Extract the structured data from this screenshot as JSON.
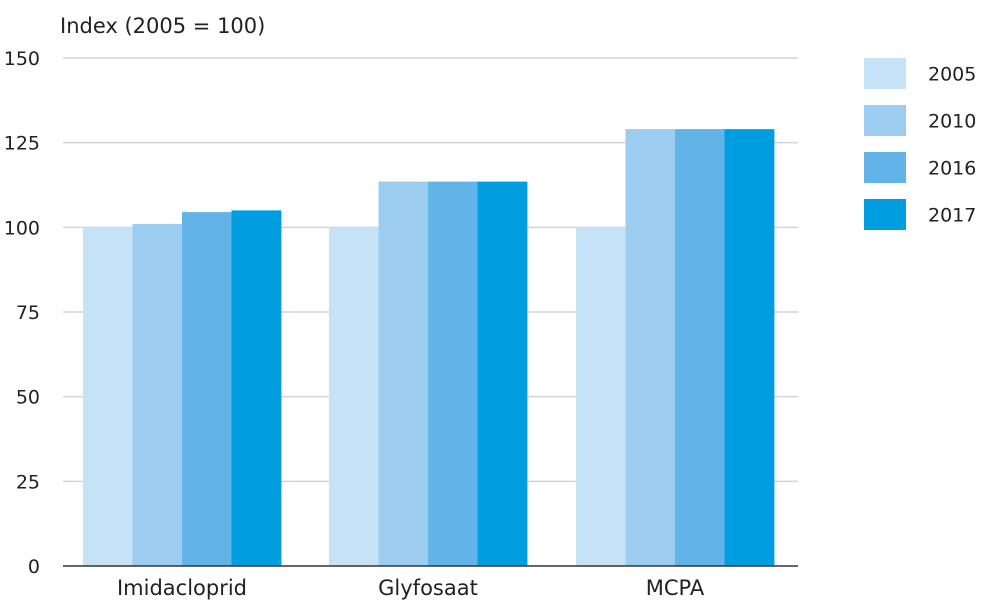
{
  "chart_data": {
    "type": "bar",
    "title": "",
    "ylabel": "Index (2005 = 100)",
    "xlabel": "",
    "ylim": [
      0,
      150
    ],
    "yticks": [
      0,
      25,
      50,
      75,
      100,
      125,
      150
    ],
    "grid": true,
    "legend_position": "right",
    "categories": [
      "Imidacloprid",
      "Glyfosaat",
      "MCPA"
    ],
    "series": [
      {
        "name": "2005",
        "color": "#c6e2f7",
        "values": [
          100,
          100,
          100
        ]
      },
      {
        "name": "2010",
        "color": "#9ccdf0",
        "values": [
          101,
          113.5,
          129
        ]
      },
      {
        "name": "2016",
        "color": "#62b3e8",
        "values": [
          104.5,
          113.5,
          129
        ]
      },
      {
        "name": "2017",
        "color": "#009ee0",
        "values": [
          105,
          113.5,
          129
        ]
      }
    ]
  }
}
